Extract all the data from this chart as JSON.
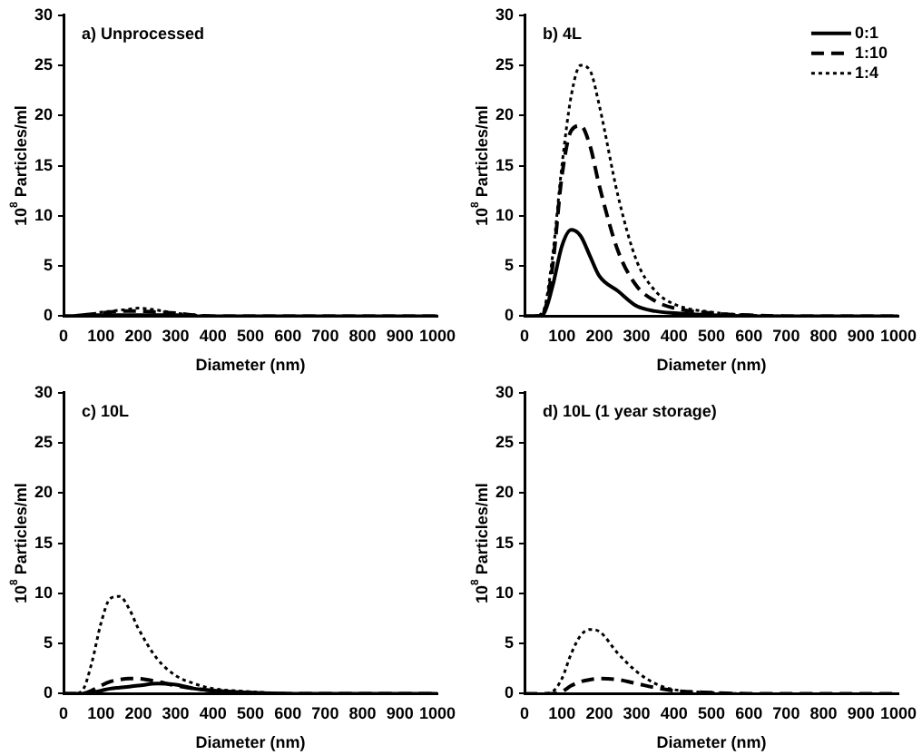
{
  "chart_data": [
    {
      "type": "line",
      "title": "a) Unprocessed",
      "xlabel": "Diameter (nm)",
      "ylabel": "10$^{8}$ Particles/ml",
      "xlim": [
        0,
        1000
      ],
      "xticks": [
        0,
        100,
        200,
        300,
        400,
        500,
        600,
        700,
        800,
        900,
        1000
      ],
      "ylim": [
        0,
        30
      ],
      "yticks": [
        0,
        5,
        10,
        15,
        20,
        25,
        30
      ],
      "grid": false,
      "legend": false,
      "marker": "none",
      "x": [
        0,
        25,
        50,
        75,
        100,
        125,
        150,
        175,
        200,
        250,
        300,
        350,
        400,
        500,
        600,
        700,
        800,
        900,
        1000
      ],
      "series": [
        {
          "color": "#000000",
          "line_style": "solid",
          "values": [
            0,
            0,
            0.1,
            0.1,
            0.1,
            0.1,
            0.1,
            0.1,
            0.1,
            0.1,
            0.1,
            0,
            0,
            0,
            0,
            0,
            0,
            0,
            0
          ]
        },
        {
          "color": "#000000",
          "line_style": "dashed",
          "values": [
            0,
            0,
            0.1,
            0.2,
            0.3,
            0.4,
            0.5,
            0.5,
            0.5,
            0.4,
            0.3,
            0.1,
            0,
            0,
            0,
            0,
            0,
            0,
            0
          ]
        },
        {
          "color": "#000000",
          "line_style": "dotted",
          "values": [
            0,
            0,
            0.1,
            0.2,
            0.4,
            0.5,
            0.6,
            0.7,
            0.8,
            0.6,
            0.3,
            0.1,
            0,
            0,
            0,
            0,
            0,
            0,
            0
          ]
        }
      ]
    },
    {
      "type": "line",
      "title": "b) 4L",
      "xlabel": "Diameter (nm)",
      "ylabel": "10$^{8}$ Particles/ml",
      "xlim": [
        0,
        1000
      ],
      "xticks": [
        0,
        100,
        200,
        300,
        400,
        500,
        600,
        700,
        800,
        900,
        1000
      ],
      "ylim": [
        0,
        30
      ],
      "yticks": [
        0,
        5,
        10,
        15,
        20,
        25,
        30
      ],
      "grid": false,
      "legend": "top right",
      "marker": "none",
      "x": [
        0,
        25,
        50,
        75,
        100,
        125,
        150,
        175,
        200,
        250,
        300,
        350,
        400,
        500,
        600,
        700,
        800,
        900,
        1000
      ],
      "series": [
        {
          "name": "0:1",
          "color": "#000000",
          "line_style": "solid",
          "values": [
            0,
            0,
            0.2,
            3,
            7,
            8.6,
            8,
            6,
            4,
            2.5,
            1,
            0.5,
            0.3,
            0.1,
            0,
            0,
            0,
            0,
            0
          ]
        },
        {
          "name": "1:10",
          "color": "#000000",
          "line_style": "dashed",
          "values": [
            0,
            0,
            0.3,
            5,
            14,
            18.5,
            19,
            17,
            13,
            6.5,
            3,
            1.5,
            0.8,
            0.3,
            0.1,
            0,
            0,
            0,
            0
          ]
        },
        {
          "name": "1:4",
          "color": "#000000",
          "line_style": "dotted",
          "values": [
            0,
            0,
            0.5,
            6,
            15,
            22,
            25,
            24.5,
            21,
            12,
            5.5,
            2.5,
            1.2,
            0.4,
            0.1,
            0,
            0,
            0,
            0
          ]
        }
      ]
    },
    {
      "type": "line",
      "title": "c) 10L",
      "xlabel": "Diameter (nm)",
      "ylabel": "10$^{8}$ Particles/ml",
      "xlim": [
        0,
        1000
      ],
      "xticks": [
        0,
        100,
        200,
        300,
        400,
        500,
        600,
        700,
        800,
        900,
        1000
      ],
      "ylim": [
        0,
        30
      ],
      "yticks": [
        0,
        5,
        10,
        15,
        20,
        25,
        30
      ],
      "grid": false,
      "legend": false,
      "marker": "none",
      "x": [
        0,
        25,
        50,
        75,
        100,
        125,
        150,
        175,
        200,
        250,
        300,
        350,
        400,
        500,
        600,
        700,
        800,
        900,
        1000
      ],
      "series": [
        {
          "color": "#000000",
          "line_style": "solid",
          "values": [
            0,
            0,
            0,
            0.1,
            0.3,
            0.5,
            0.6,
            0.7,
            0.8,
            1,
            0.9,
            0.5,
            0.3,
            0.1,
            0,
            0,
            0,
            0,
            0
          ]
        },
        {
          "color": "#000000",
          "line_style": "dashed",
          "values": [
            0,
            0,
            0,
            0.3,
            0.8,
            1.2,
            1.4,
            1.5,
            1.5,
            1.2,
            0.8,
            0.5,
            0.3,
            0.1,
            0,
            0,
            0,
            0,
            0
          ]
        },
        {
          "color": "#000000",
          "line_style": "dotted",
          "values": [
            0,
            0,
            0.3,
            3,
            7,
            9.5,
            9.7,
            8.5,
            6.5,
            3.5,
            1.8,
            1,
            0.5,
            0.2,
            0,
            0,
            0,
            0,
            0
          ]
        }
      ]
    },
    {
      "type": "line",
      "title": "d) 10L (1 year storage)",
      "xlabel": "Diameter (nm)",
      "ylabel": "10$^{8}$ Particles/ml",
      "xlim": [
        0,
        1000
      ],
      "xticks": [
        0,
        100,
        200,
        300,
        400,
        500,
        600,
        700,
        800,
        900,
        1000
      ],
      "ylim": [
        0,
        30
      ],
      "yticks": [
        0,
        5,
        10,
        15,
        20,
        25,
        30
      ],
      "grid": false,
      "legend": false,
      "marker": "none",
      "x": [
        0,
        25,
        50,
        75,
        100,
        125,
        150,
        175,
        200,
        250,
        300,
        350,
        400,
        500,
        600,
        700,
        800,
        900,
        1000
      ],
      "series": [
        {
          "color": "#000000",
          "line_style": "dashed",
          "values": [
            0,
            0,
            0,
            0,
            0.2,
            0.8,
            1.2,
            1.4,
            1.5,
            1.4,
            1,
            0.6,
            0.3,
            0.1,
            0,
            0,
            0,
            0,
            0
          ]
        },
        {
          "color": "#000000",
          "line_style": "dotted",
          "values": [
            0,
            0,
            0,
            0.2,
            1.5,
            4,
            5.8,
            6.4,
            6.2,
            4,
            2.2,
            1,
            0.4,
            0.1,
            0,
            0,
            0,
            0,
            0
          ]
        }
      ]
    }
  ]
}
